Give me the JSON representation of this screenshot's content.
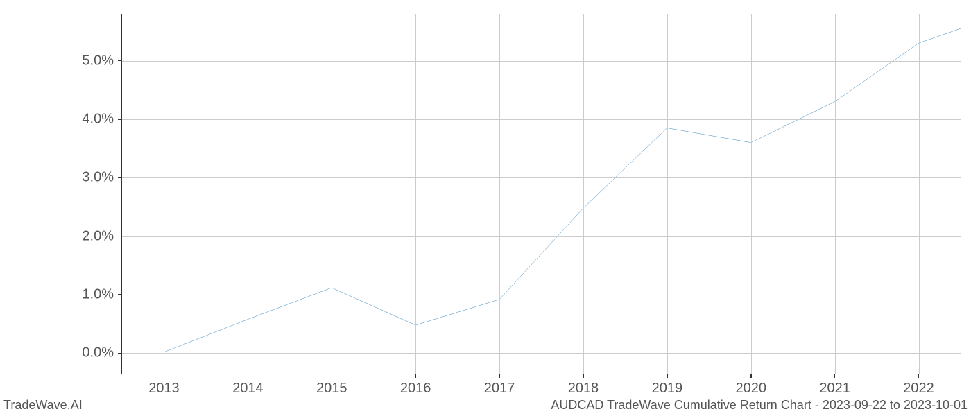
{
  "chart": {
    "type": "line",
    "x_values": [
      2013,
      2014,
      2015,
      2016,
      2017,
      2018,
      2019,
      2020,
      2021,
      2022,
      2022.5
    ],
    "y_values": [
      0.02,
      0.58,
      1.12,
      0.48,
      0.92,
      2.48,
      3.85,
      3.6,
      4.3,
      5.3,
      5.55
    ],
    "line_color": "#1f77b4",
    "line_width": 2.2,
    "x_ticks": [
      2013,
      2014,
      2015,
      2016,
      2017,
      2018,
      2019,
      2020,
      2021,
      2022
    ],
    "x_tick_labels": [
      "2013",
      "2014",
      "2015",
      "2016",
      "2017",
      "2018",
      "2019",
      "2020",
      "2021",
      "2022"
    ],
    "y_ticks": [
      0,
      1,
      2,
      3,
      4,
      5
    ],
    "y_tick_labels": [
      "0.0%",
      "1.0%",
      "2.0%",
      "3.0%",
      "4.0%",
      "5.0%"
    ],
    "xlim": [
      2012.5,
      2022.5
    ],
    "ylim": [
      -0.35,
      5.8
    ],
    "grid_color": "#cccccc",
    "axis_color": "#333333",
    "background_color": "#ffffff",
    "label_fontsize": 20,
    "label_color": "#555555"
  },
  "footer": {
    "left": "TradeWave.AI",
    "right": "AUDCAD TradeWave Cumulative Return Chart - 2023-09-22 to 2023-10-01"
  }
}
